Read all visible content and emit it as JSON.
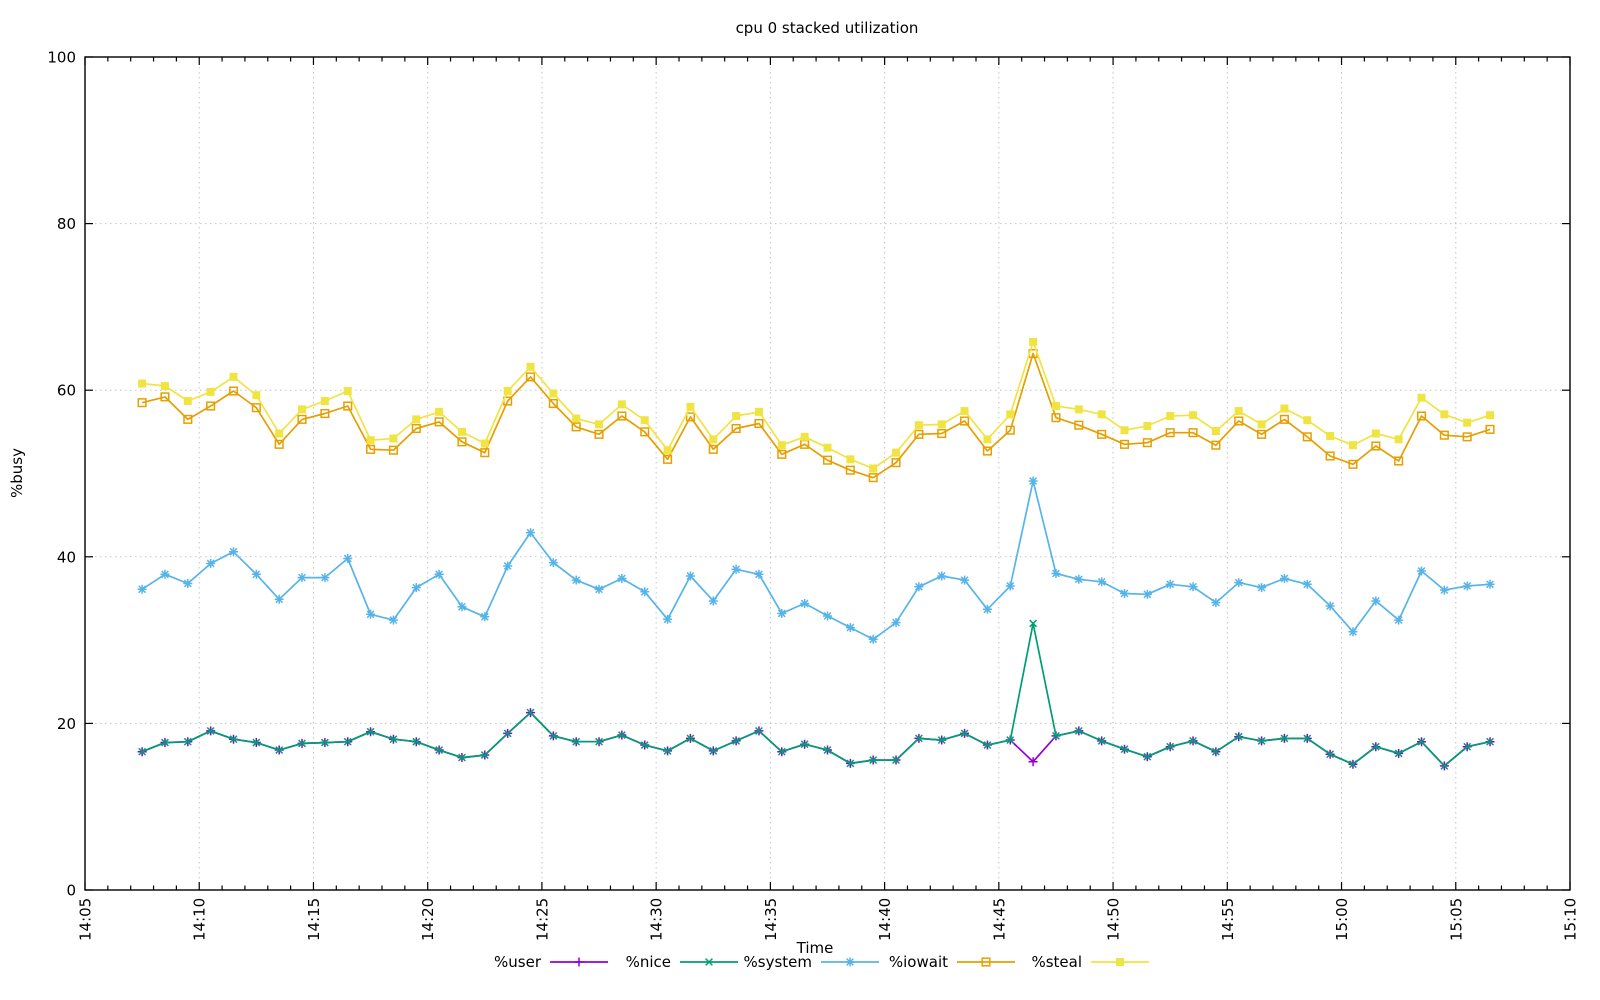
{
  "title": "cpu 0 stacked utilization",
  "axes": {
    "ylabel": "%busy",
    "xlabel": "Time",
    "y_range": [
      0,
      100
    ],
    "y_ticks": [
      0,
      20,
      40,
      60,
      80,
      100
    ],
    "x_range_minutes": [
      5,
      70
    ],
    "x_major_step_min": 5,
    "x_minor_step_min": 1,
    "x_tick_labels": [
      "14:05",
      "14:10",
      "14:15",
      "14:20",
      "14:25",
      "14:30",
      "14:35",
      "14:40",
      "14:45",
      "14:50",
      "14:55",
      "15:00",
      "15:05",
      "15:10"
    ]
  },
  "chart_data": {
    "type": "line",
    "title": "cpu 0 stacked utilization",
    "xlabel": "Time",
    "ylabel": "%busy",
    "ylim": [
      0,
      100
    ],
    "xlim_minutes_after_1400": [
      5,
      70
    ],
    "grid": "dotted",
    "legend_position": "bottom-center",
    "stacking": "cumulative lines: %user, +%nice, +%system, +%iowait, +%steal",
    "x_minutes_after_1400": [
      7.5,
      8.5,
      9.5,
      10.5,
      11.5,
      12.5,
      13.5,
      14.5,
      15.5,
      16.5,
      17.5,
      18.5,
      19.5,
      20.5,
      21.5,
      22.5,
      23.5,
      24.5,
      25.5,
      26.5,
      27.5,
      28.5,
      29.5,
      30.5,
      31.5,
      32.5,
      33.5,
      34.5,
      35.5,
      36.5,
      37.5,
      38.5,
      39.5,
      40.5,
      41.5,
      42.5,
      43.5,
      44.5,
      45.5,
      46.5,
      47.5,
      48.5,
      49.5,
      50.5,
      51.5,
      52.5,
      53.5,
      54.5,
      55.5,
      56.5,
      57.5,
      58.5,
      59.5,
      60.5,
      61.5,
      62.5,
      63.5,
      64.5,
      65.5,
      66.5
    ],
    "series": [
      {
        "name": "%user",
        "color": "#9400d3",
        "marker": "plus",
        "values": [
          16.6,
          17.7,
          17.8,
          19.1,
          18.1,
          17.7,
          16.8,
          17.6,
          17.7,
          17.8,
          19.0,
          18.1,
          17.8,
          16.8,
          15.9,
          16.2,
          18.8,
          21.3,
          18.5,
          17.8,
          17.8,
          18.6,
          17.4,
          16.7,
          18.2,
          16.7,
          17.9,
          19.1,
          16.6,
          17.5,
          16.8,
          15.2,
          15.6,
          15.6,
          18.2,
          18.0,
          18.8,
          17.4,
          18.0,
          15.4,
          18.5,
          19.1,
          17.9,
          16.9,
          16.0,
          17.2,
          17.9,
          16.6,
          18.4,
          17.9,
          18.2,
          18.2,
          16.3,
          15.1,
          17.2,
          16.4,
          17.8,
          14.9,
          17.2,
          17.8
        ]
      },
      {
        "name": "%nice",
        "color": "#009e73",
        "marker": "cross",
        "values": [
          16.6,
          17.7,
          17.8,
          19.1,
          18.1,
          17.7,
          16.8,
          17.6,
          17.7,
          17.8,
          19.0,
          18.1,
          17.8,
          16.8,
          15.9,
          16.2,
          18.8,
          21.3,
          18.5,
          17.8,
          17.8,
          18.6,
          17.4,
          16.7,
          18.2,
          16.7,
          17.9,
          19.1,
          16.6,
          17.5,
          16.8,
          15.2,
          15.6,
          15.6,
          18.2,
          18.0,
          18.8,
          17.4,
          18.0,
          32.0,
          18.5,
          19.1,
          17.9,
          16.9,
          16.0,
          17.2,
          17.9,
          16.6,
          18.4,
          17.9,
          18.2,
          18.2,
          16.3,
          15.1,
          17.2,
          16.4,
          17.8,
          14.9,
          17.2,
          17.8
        ]
      },
      {
        "name": "%system",
        "color": "#56b4e9",
        "marker": "asterisk",
        "values": [
          36.1,
          37.9,
          36.8,
          39.2,
          40.6,
          37.9,
          34.9,
          37.5,
          37.5,
          39.8,
          33.1,
          32.4,
          36.3,
          37.9,
          34.0,
          32.8,
          38.9,
          42.9,
          39.3,
          37.2,
          36.1,
          37.4,
          35.8,
          32.5,
          37.7,
          34.7,
          38.5,
          37.9,
          33.2,
          34.4,
          32.9,
          31.5,
          30.1,
          32.1,
          36.4,
          37.7,
          37.2,
          33.7,
          36.5,
          49.1,
          38.0,
          37.3,
          37.0,
          35.6,
          35.5,
          36.7,
          36.4,
          34.5,
          36.9,
          36.3,
          37.4,
          36.7,
          34.1,
          31.0,
          34.7,
          32.4,
          38.3,
          36.0,
          36.5,
          36.7
        ]
      },
      {
        "name": "%iowait",
        "color": "#e69f00",
        "marker": "open-square",
        "values": [
          58.5,
          59.2,
          56.5,
          58.1,
          59.9,
          57.9,
          53.5,
          56.5,
          57.2,
          58.1,
          52.9,
          52.8,
          55.4,
          56.2,
          53.8,
          52.5,
          58.7,
          61.6,
          58.4,
          55.6,
          54.7,
          56.9,
          55.0,
          51.7,
          56.8,
          52.9,
          55.4,
          56.0,
          52.3,
          53.5,
          51.6,
          50.4,
          49.5,
          51.3,
          54.7,
          54.8,
          56.3,
          52.7,
          55.2,
          64.4,
          56.7,
          55.8,
          54.7,
          53.5,
          53.7,
          54.9,
          54.9,
          53.4,
          56.3,
          54.7,
          56.5,
          54.4,
          52.1,
          51.1,
          53.3,
          51.5,
          56.9,
          54.6,
          54.4,
          55.3
        ]
      },
      {
        "name": "%steal",
        "color": "#f0e442",
        "marker": "filled-square",
        "values": [
          60.8,
          60.5,
          58.7,
          59.8,
          61.6,
          59.4,
          54.8,
          57.7,
          58.7,
          59.9,
          54.0,
          54.2,
          56.5,
          57.4,
          55.0,
          53.6,
          59.9,
          62.8,
          59.6,
          56.6,
          55.9,
          58.3,
          56.4,
          52.8,
          58.0,
          54.1,
          56.9,
          57.4,
          53.4,
          54.4,
          53.1,
          51.7,
          50.6,
          52.5,
          55.8,
          55.9,
          57.5,
          54.1,
          57.1,
          65.8,
          58.1,
          57.7,
          57.1,
          55.2,
          55.7,
          56.9,
          57.0,
          55.1,
          57.5,
          55.9,
          57.8,
          56.4,
          54.5,
          53.4,
          54.8,
          54.1,
          59.1,
          57.1,
          56.1,
          57.0
        ]
      }
    ]
  }
}
